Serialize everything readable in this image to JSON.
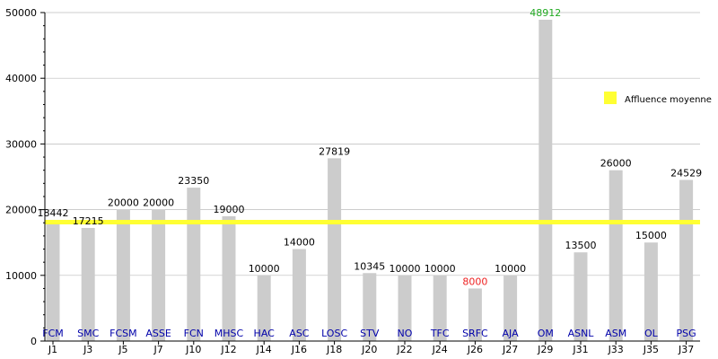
{
  "chart_data": {
    "type": "bar",
    "categories": [
      "J1",
      "J3",
      "J5",
      "J7",
      "J10",
      "J12",
      "J14",
      "J16",
      "J18",
      "J20",
      "J22",
      "J24",
      "J26",
      "J27",
      "J29",
      "J31",
      "J33",
      "J35",
      "J37"
    ],
    "opponents": [
      "FCM",
      "SMC",
      "FCSM",
      "ASSE",
      "FCN",
      "MHSC",
      "HAC",
      "ASC",
      "LOSC",
      "STV",
      "NO",
      "TFC",
      "SRFC",
      "AJA",
      "OM",
      "ASNL",
      "ASM",
      "OL",
      "PSG"
    ],
    "values": [
      18442,
      17215,
      20000,
      20000,
      23350,
      19000,
      10000,
      14000,
      27819,
      10345,
      10000,
      10000,
      8000,
      10000,
      48912,
      13500,
      26000,
      15000,
      24529
    ],
    "value_labels": [
      "18442",
      "17215",
      "20000",
      "20000",
      "23350",
      "19000",
      "10000",
      "14000",
      "27819",
      "10345",
      "10000",
      "10000",
      "8000",
      "10000",
      "48912",
      "13500",
      "26000",
      "15000",
      "24529"
    ],
    "ylim": [
      0,
      50000
    ],
    "yticks": [
      0,
      10000,
      20000,
      30000,
      40000,
      50000
    ],
    "ytick_labels": [
      "0",
      "10000",
      "20000",
      "30000",
      "40000",
      "50000"
    ],
    "grid": true,
    "reference_line": {
      "name": "Affluence moyenne",
      "value": 18100
    },
    "highlight": {
      "max_index": 14,
      "min_index": 12
    },
    "legend": {
      "position": "top-right",
      "label": "Affluence moyenne"
    }
  },
  "colors": {
    "bar": "#cccccc",
    "grid": "#bbbbbb",
    "axis": "#000000",
    "opponent_label": "#0000aa",
    "max_value": "#22aa22",
    "min_value": "#ee2222",
    "average_line": "#ffff33"
  }
}
